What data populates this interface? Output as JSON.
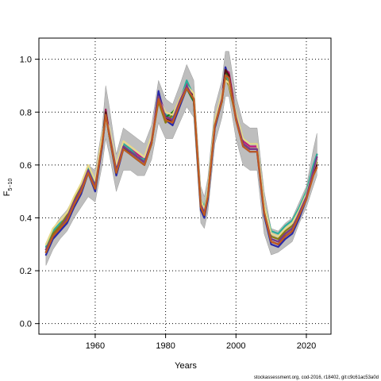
{
  "chart_data": {
    "type": "line",
    "title": "",
    "xlabel": "Years",
    "ylabel_main": "F",
    "ylabel_sub": "5−10",
    "xlim": [
      1944,
      2027
    ],
    "ylim": [
      -0.04,
      1.08
    ],
    "xticks": [
      1960,
      1980,
      2000,
      2020
    ],
    "yticks": [
      0.0,
      0.2,
      0.4,
      0.6,
      0.8,
      1.0
    ],
    "ytick_labels": [
      "0.0",
      "0.2",
      "0.4",
      "0.6",
      "0.8",
      "1.0"
    ],
    "grid": "dotted at ticks",
    "confidence_band_color": "#bebebe",
    "x": [
      1946,
      1948,
      1950,
      1952,
      1954,
      1956,
      1958,
      1960,
      1962,
      1963,
      1964,
      1966,
      1968,
      1970,
      1972,
      1974,
      1976,
      1978,
      1980,
      1982,
      1984,
      1986,
      1988,
      1990,
      1991,
      1992,
      1994,
      1996,
      1997,
      1998,
      2000,
      2002,
      2004,
      2006,
      2008,
      2010,
      2012,
      2014,
      2016,
      2018,
      2020,
      2022,
      2023
    ],
    "band_upper": [
      0.3,
      0.36,
      0.4,
      0.43,
      0.48,
      0.53,
      0.6,
      0.58,
      0.74,
      0.9,
      0.82,
      0.64,
      0.74,
      0.72,
      0.7,
      0.68,
      0.75,
      0.92,
      0.85,
      0.83,
      0.9,
      0.98,
      0.92,
      0.52,
      0.48,
      0.55,
      0.82,
      0.92,
      1.03,
      1.03,
      0.86,
      0.76,
      0.74,
      0.74,
      0.5,
      0.36,
      0.35,
      0.38,
      0.4,
      0.46,
      0.52,
      0.66,
      0.72
    ],
    "band_lower": [
      0.22,
      0.28,
      0.32,
      0.35,
      0.4,
      0.44,
      0.48,
      0.46,
      0.6,
      0.7,
      0.64,
      0.5,
      0.58,
      0.58,
      0.56,
      0.56,
      0.62,
      0.76,
      0.7,
      0.7,
      0.76,
      0.82,
      0.78,
      0.38,
      0.36,
      0.42,
      0.68,
      0.78,
      0.86,
      0.86,
      0.7,
      0.6,
      0.58,
      0.58,
      0.34,
      0.26,
      0.27,
      0.29,
      0.31,
      0.38,
      0.44,
      0.52,
      0.56
    ],
    "series": [
      {
        "color": "#9b1b5a",
        "values": [
          0.27,
          0.33,
          0.36,
          0.39,
          0.45,
          0.5,
          0.58,
          0.51,
          0.68,
          0.81,
          0.72,
          0.57,
          0.67,
          0.65,
          0.63,
          0.61,
          0.69,
          0.86,
          0.78,
          0.76,
          0.83,
          0.9,
          0.85,
          0.44,
          0.41,
          0.48,
          0.75,
          0.85,
          0.95,
          0.94,
          0.78,
          0.68,
          0.66,
          0.66,
          0.42,
          0.31,
          0.3,
          0.33,
          0.35,
          0.41,
          0.48,
          0.58,
          0.64
        ]
      },
      {
        "color": "#c2187a",
        "values": [
          0.28,
          0.34,
          0.37,
          0.4,
          0.46,
          0.51,
          0.59,
          0.52,
          0.69,
          0.8,
          0.73,
          0.58,
          0.68,
          0.66,
          0.64,
          0.62,
          0.7,
          0.87,
          0.79,
          0.77,
          0.84,
          0.91,
          0.86,
          0.45,
          0.42,
          0.49,
          0.76,
          0.86,
          0.96,
          0.95,
          0.79,
          0.69,
          0.67,
          0.67,
          0.43,
          0.32,
          0.31,
          0.34,
          0.36,
          0.42,
          0.49,
          0.59,
          0.63
        ]
      },
      {
        "color": "#2a2aa8",
        "values": [
          0.26,
          0.32,
          0.35,
          0.38,
          0.44,
          0.49,
          0.57,
          0.5,
          0.67,
          0.79,
          0.71,
          0.56,
          0.66,
          0.64,
          0.62,
          0.6,
          0.68,
          0.88,
          0.77,
          0.75,
          0.82,
          0.89,
          0.84,
          0.43,
          0.4,
          0.47,
          0.74,
          0.84,
          0.97,
          0.93,
          0.77,
          0.67,
          0.65,
          0.65,
          0.41,
          0.3,
          0.29,
          0.32,
          0.34,
          0.4,
          0.47,
          0.57,
          0.62
        ]
      },
      {
        "color": "#2cae9a",
        "values": [
          0.29,
          0.35,
          0.38,
          0.4,
          0.46,
          0.52,
          0.59,
          0.53,
          0.7,
          0.79,
          0.72,
          0.58,
          0.68,
          0.66,
          0.63,
          0.62,
          0.7,
          0.85,
          0.79,
          0.78,
          0.84,
          0.92,
          0.86,
          0.47,
          0.44,
          0.5,
          0.77,
          0.86,
          0.94,
          0.92,
          0.8,
          0.7,
          0.68,
          0.68,
          0.45,
          0.35,
          0.34,
          0.37,
          0.39,
          0.44,
          0.5,
          0.6,
          0.64
        ]
      },
      {
        "color": "#8a7a10",
        "values": [
          0.28,
          0.34,
          0.37,
          0.41,
          0.47,
          0.52,
          0.58,
          0.52,
          0.68,
          0.78,
          0.72,
          0.58,
          0.67,
          0.65,
          0.63,
          0.61,
          0.69,
          0.84,
          0.76,
          0.79,
          0.85,
          0.9,
          0.85,
          0.45,
          0.42,
          0.48,
          0.76,
          0.85,
          0.93,
          0.9,
          0.78,
          0.68,
          0.66,
          0.66,
          0.43,
          0.33,
          0.32,
          0.35,
          0.37,
          0.42,
          0.48,
          0.57,
          0.61
        ]
      },
      {
        "color": "#1f7a1f",
        "values": [
          0.27,
          0.33,
          0.36,
          0.39,
          0.45,
          0.5,
          0.57,
          0.51,
          0.69,
          0.8,
          0.71,
          0.57,
          0.67,
          0.64,
          0.62,
          0.6,
          0.68,
          0.86,
          0.78,
          0.8,
          0.83,
          0.89,
          0.84,
          0.44,
          0.41,
          0.48,
          0.75,
          0.84,
          0.95,
          0.93,
          0.78,
          0.68,
          0.66,
          0.66,
          0.42,
          0.32,
          0.31,
          0.34,
          0.36,
          0.41,
          0.48,
          0.58,
          0.62
        ]
      },
      {
        "color": "#5a1010",
        "values": [
          0.27,
          0.33,
          0.36,
          0.39,
          0.45,
          0.5,
          0.58,
          0.51,
          0.68,
          0.8,
          0.72,
          0.57,
          0.67,
          0.65,
          0.63,
          0.61,
          0.69,
          0.86,
          0.78,
          0.76,
          0.83,
          0.9,
          0.86,
          0.44,
          0.41,
          0.48,
          0.75,
          0.85,
          0.96,
          0.94,
          0.78,
          0.68,
          0.66,
          0.66,
          0.42,
          0.31,
          0.3,
          0.33,
          0.35,
          0.41,
          0.48,
          0.57,
          0.6
        ]
      },
      {
        "color": "#e8d98a",
        "values": [
          0.3,
          0.36,
          0.39,
          0.42,
          0.48,
          0.53,
          0.6,
          0.54,
          0.71,
          0.77,
          0.74,
          0.6,
          0.69,
          0.67,
          0.65,
          0.63,
          0.71,
          0.85,
          0.8,
          0.79,
          0.85,
          0.9,
          0.87,
          0.47,
          0.43,
          0.5,
          0.77,
          0.87,
          0.92,
          0.91,
          0.8,
          0.7,
          0.68,
          0.68,
          0.45,
          0.34,
          0.33,
          0.36,
          0.38,
          0.43,
          0.49,
          0.58,
          0.62
        ]
      },
      {
        "color": "#7a3a8a",
        "values": [
          0.28,
          0.33,
          0.36,
          0.4,
          0.46,
          0.51,
          0.58,
          0.52,
          0.68,
          0.79,
          0.72,
          0.58,
          0.67,
          0.65,
          0.63,
          0.61,
          0.69,
          0.86,
          0.78,
          0.77,
          0.84,
          0.9,
          0.85,
          0.45,
          0.42,
          0.48,
          0.75,
          0.85,
          0.94,
          0.93,
          0.78,
          0.68,
          0.66,
          0.66,
          0.42,
          0.32,
          0.31,
          0.34,
          0.36,
          0.42,
          0.48,
          0.58,
          0.63
        ]
      },
      {
        "color": "#c05a20",
        "values": [
          0.27,
          0.33,
          0.36,
          0.39,
          0.45,
          0.5,
          0.57,
          0.51,
          0.68,
          0.79,
          0.71,
          0.57,
          0.66,
          0.64,
          0.62,
          0.6,
          0.68,
          0.85,
          0.77,
          0.76,
          0.83,
          0.89,
          0.85,
          0.44,
          0.41,
          0.48,
          0.75,
          0.84,
          0.94,
          0.93,
          0.77,
          0.67,
          0.65,
          0.65,
          0.42,
          0.31,
          0.3,
          0.33,
          0.35,
          0.41,
          0.47,
          0.56,
          0.59
        ]
      }
    ]
  },
  "watermark": "stockassessment.org, cod-2016, r18402, git:c9c61ac53a0d"
}
